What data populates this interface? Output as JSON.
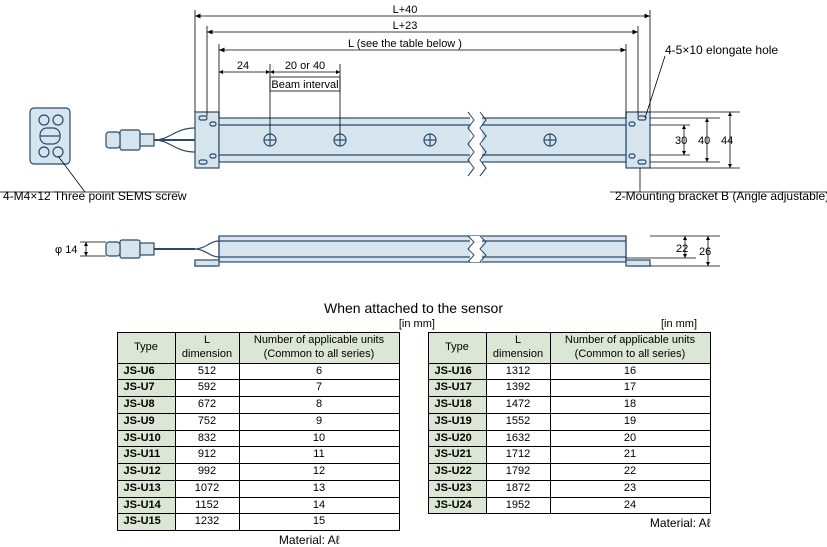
{
  "diagram": {
    "dim_top_outer": "L+40",
    "dim_top_mid": "L+23",
    "dim_top_inner": "L (see the table below )",
    "dim_24": "24",
    "dim_20_40": "20 or 40",
    "beam_interval": "Beam interval",
    "dim_30": "30",
    "dim_40_r": "40",
    "dim_44": "44",
    "dim_22": "22",
    "dim_26": "26",
    "phi14": "φ 14",
    "label_elongate": "4-5×10 elongate hole",
    "label_sems": "4-M4×12 Three point SEMS screw",
    "label_bracket": "2-Mounting bracket B (Angle adjustable)",
    "colors": {
      "body_fill": "#d6e4ee",
      "body_stroke": "#2a4a6a",
      "conn_fill": "#d6e4ee",
      "bracket_fill": "#d6e4ee",
      "break_fill": "#ffffff",
      "line": "#000000"
    }
  },
  "tables": {
    "title": "When attached to the sensor",
    "unit": "[in mm]",
    "headers": {
      "type": "Type",
      "ldim": "L dimension",
      "units": "Number of applicable units\n(Common to all series)"
    },
    "left": [
      {
        "type": "JS-U6",
        "l": 512,
        "n": 6
      },
      {
        "type": "JS-U7",
        "l": 592,
        "n": 7
      },
      {
        "type": "JS-U8",
        "l": 672,
        "n": 8
      },
      {
        "type": "JS-U9",
        "l": 752,
        "n": 9
      },
      {
        "type": "JS-U10",
        "l": 832,
        "n": 10
      },
      {
        "type": "JS-U11",
        "l": 912,
        "n": 11
      },
      {
        "type": "JS-U12",
        "l": 992,
        "n": 12
      },
      {
        "type": "JS-U13",
        "l": 1072,
        "n": 13
      },
      {
        "type": "JS-U14",
        "l": 1152,
        "n": 14
      },
      {
        "type": "JS-U15",
        "l": 1232,
        "n": 15
      }
    ],
    "right": [
      {
        "type": "JS-U16",
        "l": 1312,
        "n": 16
      },
      {
        "type": "JS-U17",
        "l": 1392,
        "n": 17
      },
      {
        "type": "JS-U18",
        "l": 1472,
        "n": 18
      },
      {
        "type": "JS-U19",
        "l": 1552,
        "n": 19
      },
      {
        "type": "JS-U20",
        "l": 1632,
        "n": 20
      },
      {
        "type": "JS-U21",
        "l": 1712,
        "n": 21
      },
      {
        "type": "JS-U22",
        "l": 1792,
        "n": 22
      },
      {
        "type": "JS-U23",
        "l": 1872,
        "n": 23
      },
      {
        "type": "JS-U24",
        "l": 1952,
        "n": 24
      }
    ],
    "material": "Material: Aℓ"
  }
}
